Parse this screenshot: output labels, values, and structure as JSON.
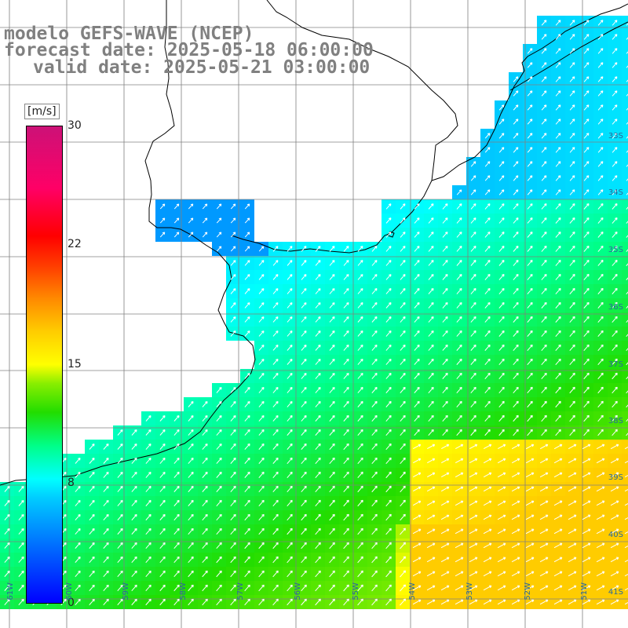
{
  "title": {
    "line1": "modelo GEFS-WAVE (NCEP)",
    "line2": "forecast date: 2025-05-18 06:00:00",
    "line3": "valid date: 2025-05-21 03:00:00"
  },
  "colorbar": {
    "unit": "[m/s]",
    "min": 0,
    "max": 30,
    "ticks": [
      "30",
      "22",
      "15",
      "8",
      "0"
    ],
    "colors": [
      "#0000ff",
      "#0077ff",
      "#00ccff",
      "#00ffff",
      "#00ff88",
      "#22dd00",
      "#88ee00",
      "#ffff00",
      "#ffcc00",
      "#ff8800",
      "#ff4400",
      "#ff0000",
      "#cc1177"
    ]
  },
  "grid": {
    "lat_labels": [
      "33S",
      "34S",
      "35S",
      "36S",
      "37S",
      "38S",
      "39S",
      "40S",
      "41S"
    ],
    "lon_labels": [
      "61W",
      "60W",
      "59W",
      "58W",
      "57W",
      "56W",
      "55W",
      "54W",
      "53W",
      "52W",
      "51W"
    ]
  },
  "legend_colors": {
    "land": "#ffffff",
    "coast": "#000000",
    "grid": "#808080",
    "vector": "#ffffff"
  }
}
